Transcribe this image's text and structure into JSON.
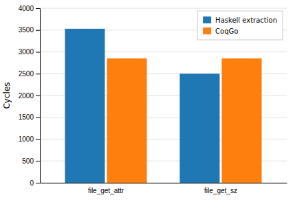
{
  "chart_data": {
    "type": "bar",
    "categories": [
      "file_get_attr",
      "file_get_sz"
    ],
    "series": [
      {
        "name": "Haskell extraction",
        "values": [
          3530,
          2500
        ]
      },
      {
        "name": "CoqGo",
        "values": [
          2850,
          2850
        ]
      }
    ],
    "ylabel": "Cycles",
    "ylim": [
      0,
      4000
    ],
    "yticks": [
      0,
      500,
      1000,
      1500,
      2000,
      2500,
      3000,
      3500,
      4000
    ],
    "grid": true,
    "legend": "upper right"
  }
}
